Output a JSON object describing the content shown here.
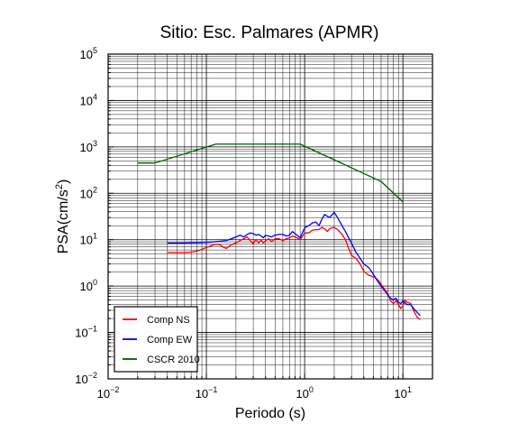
{
  "chart_data": {
    "type": "line",
    "title": "Sitio: Esc. Palmares (APMR)",
    "xlabel": "Periodo (s)",
    "ylabel": {
      "base": "PSA(cm/s",
      "sup": "2",
      "tail": ")"
    },
    "x_scale": "log",
    "y_scale": "log",
    "xlim": [
      0.01,
      20
    ],
    "ylim": [
      0.01,
      100000
    ],
    "x_ticks": [
      {
        "value": 0.01,
        "base": "10",
        "exp": "−2"
      },
      {
        "value": 0.1,
        "base": "10",
        "exp": "−1"
      },
      {
        "value": 1,
        "base": "10",
        "exp": "0"
      },
      {
        "value": 10,
        "base": "10",
        "exp": "1"
      }
    ],
    "y_ticks": [
      {
        "value": 0.01,
        "base": "10",
        "exp": "−2"
      },
      {
        "value": 0.1,
        "base": "10",
        "exp": "−1"
      },
      {
        "value": 1,
        "base": "10",
        "exp": "0"
      },
      {
        "value": 10,
        "base": "10",
        "exp": "1"
      },
      {
        "value": 100,
        "base": "10",
        "exp": "2"
      },
      {
        "value": 1000,
        "base": "10",
        "exp": "3"
      },
      {
        "value": 10000,
        "base": "10",
        "exp": "4"
      },
      {
        "value": 100000,
        "base": "10",
        "exp": "5"
      }
    ],
    "grid": true,
    "legend_position": "bottom-left",
    "series": [
      {
        "name": "Comp NS",
        "color": "#ff0000",
        "points": [
          [
            0.04,
            5.3
          ],
          [
            0.05,
            5.3
          ],
          [
            0.06,
            5.3
          ],
          [
            0.07,
            5.4
          ],
          [
            0.08,
            5.7
          ],
          [
            0.09,
            6.2
          ],
          [
            0.1,
            6.8
          ],
          [
            0.11,
            7.3
          ],
          [
            0.12,
            7.8
          ],
          [
            0.13,
            8
          ],
          [
            0.14,
            7.6
          ],
          [
            0.15,
            6.8
          ],
          [
            0.16,
            6.5
          ],
          [
            0.17,
            7.2
          ],
          [
            0.18,
            7.8
          ],
          [
            0.2,
            8.5
          ],
          [
            0.22,
            9.5
          ],
          [
            0.24,
            10.5
          ],
          [
            0.26,
            11.5
          ],
          [
            0.28,
            9.5
          ],
          [
            0.3,
            8.2
          ],
          [
            0.32,
            10.2
          ],
          [
            0.34,
            8.5
          ],
          [
            0.36,
            9.8
          ],
          [
            0.38,
            8.5
          ],
          [
            0.4,
            9.5
          ],
          [
            0.43,
            10.5
          ],
          [
            0.46,
            9
          ],
          [
            0.5,
            10.5
          ],
          [
            0.55,
            10.5
          ],
          [
            0.6,
            9.5
          ],
          [
            0.65,
            10.5
          ],
          [
            0.7,
            11
          ],
          [
            0.75,
            12
          ],
          [
            0.8,
            11.5
          ],
          [
            0.9,
            10
          ],
          [
            1,
            14
          ],
          [
            1.1,
            14
          ],
          [
            1.2,
            16
          ],
          [
            1.3,
            16.5
          ],
          [
            1.4,
            16.5
          ],
          [
            1.5,
            18.5
          ],
          [
            1.6,
            17
          ],
          [
            1.7,
            15
          ],
          [
            1.8,
            17.5
          ],
          [
            2,
            18.5
          ],
          [
            2.2,
            16
          ],
          [
            2.4,
            13
          ],
          [
            2.6,
            10
          ],
          [
            2.8,
            6.5
          ],
          [
            3,
            4.6
          ],
          [
            3.3,
            4
          ],
          [
            3.6,
            3.2
          ],
          [
            4,
            2.1
          ],
          [
            4.5,
            1.7
          ],
          [
            5,
            1.6
          ],
          [
            5.5,
            1.4
          ],
          [
            6,
            1.1
          ],
          [
            6.5,
            0.85
          ],
          [
            7,
            0.7
          ],
          [
            7.5,
            0.48
          ],
          [
            8,
            0.42
          ],
          [
            8.5,
            0.48
          ],
          [
            9,
            0.4
          ],
          [
            9.5,
            0.33
          ],
          [
            10,
            0.38
          ],
          [
            10.5,
            0.5
          ],
          [
            11,
            0.45
          ],
          [
            12,
            0.42
          ],
          [
            13,
            0.28
          ],
          [
            14,
            0.21
          ],
          [
            15,
            0.19
          ]
        ]
      },
      {
        "name": "Comp EW",
        "color": "#0000ff",
        "points": [
          [
            0.04,
            8.5
          ],
          [
            0.05,
            8.5
          ],
          [
            0.06,
            8.5
          ],
          [
            0.07,
            8.6
          ],
          [
            0.08,
            8.6
          ],
          [
            0.09,
            8.7
          ],
          [
            0.1,
            8.8
          ],
          [
            0.12,
            9
          ],
          [
            0.14,
            9.3
          ],
          [
            0.16,
            9.6
          ],
          [
            0.18,
            10.5
          ],
          [
            0.2,
            11.5
          ],
          [
            0.22,
            12.5
          ],
          [
            0.24,
            11.5
          ],
          [
            0.26,
            13
          ],
          [
            0.28,
            14
          ],
          [
            0.3,
            13.5
          ],
          [
            0.32,
            12.5
          ],
          [
            0.34,
            13
          ],
          [
            0.36,
            12
          ],
          [
            0.38,
            11
          ],
          [
            0.4,
            12.5
          ],
          [
            0.43,
            12
          ],
          [
            0.46,
            11.5
          ],
          [
            0.5,
            12.5
          ],
          [
            0.55,
            13
          ],
          [
            0.6,
            13
          ],
          [
            0.65,
            12
          ],
          [
            0.7,
            12.5
          ],
          [
            0.75,
            15
          ],
          [
            0.8,
            13.5
          ],
          [
            0.9,
            11
          ],
          [
            1,
            18
          ],
          [
            1.1,
            20
          ],
          [
            1.2,
            23
          ],
          [
            1.3,
            24
          ],
          [
            1.4,
            20
          ],
          [
            1.5,
            28
          ],
          [
            1.6,
            35
          ],
          [
            1.7,
            32
          ],
          [
            1.8,
            30
          ],
          [
            2,
            39
          ],
          [
            2.2,
            28
          ],
          [
            2.4,
            20
          ],
          [
            2.6,
            15
          ],
          [
            2.8,
            11
          ],
          [
            3,
            8.5
          ],
          [
            3.3,
            5.5
          ],
          [
            3.6,
            4.2
          ],
          [
            4,
            3
          ],
          [
            4.5,
            2.5
          ],
          [
            5,
            1.8
          ],
          [
            5.5,
            1.3
          ],
          [
            6,
            1
          ],
          [
            6.5,
            0.8
          ],
          [
            7,
            0.65
          ],
          [
            7.5,
            0.55
          ],
          [
            8,
            0.5
          ],
          [
            8.5,
            0.55
          ],
          [
            9,
            0.45
          ],
          [
            9.5,
            0.42
          ],
          [
            10,
            0.48
          ],
          [
            11,
            0.4
          ],
          [
            12,
            0.4
          ],
          [
            13,
            0.32
          ],
          [
            14,
            0.27
          ],
          [
            15,
            0.23
          ]
        ]
      },
      {
        "name": "CSCR 2010",
        "color": "#005a00",
        "points": [
          [
            0.02,
            450
          ],
          [
            0.03,
            450
          ],
          [
            0.125,
            1150
          ],
          [
            0.9,
            1150
          ],
          [
            6,
            180
          ],
          [
            10,
            65
          ]
        ]
      }
    ]
  }
}
